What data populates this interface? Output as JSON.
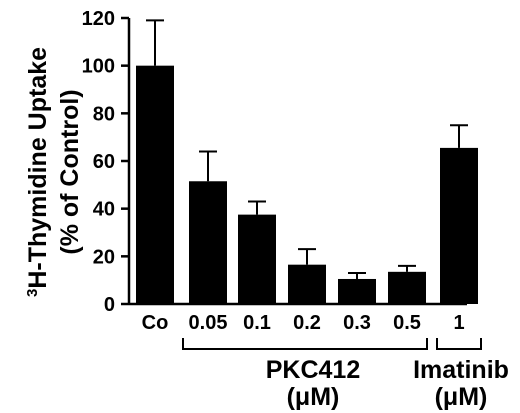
{
  "chart_data": {
    "type": "bar",
    "ylabel_line1": "H-Thymidine Uptake",
    "ylabel_superscript": "3",
    "ylabel_line2": "(% of Control)",
    "ylim": [
      0,
      120
    ],
    "yticks": [
      "0",
      "20",
      "40",
      "60",
      "80",
      "100",
      "120"
    ],
    "grid": false,
    "categories": [
      "Co",
      "0.05",
      "0.1",
      "0.2",
      "0.3",
      "0.5",
      "1"
    ],
    "values": [
      100,
      51.5,
      37.5,
      16.5,
      10.5,
      13.5,
      65.5
    ],
    "errors": [
      19,
      12.5,
      5.5,
      6.5,
      2.5,
      2.5,
      9.5
    ],
    "bar_color": "#000000",
    "groups": [
      {
        "label": "PKC412",
        "unit": "(μM)",
        "categories": [
          "0.05",
          "0.1",
          "0.2",
          "0.3",
          "0.5"
        ]
      },
      {
        "label": "Imatinib",
        "unit": "(μM)",
        "categories": [
          "1"
        ]
      }
    ]
  }
}
